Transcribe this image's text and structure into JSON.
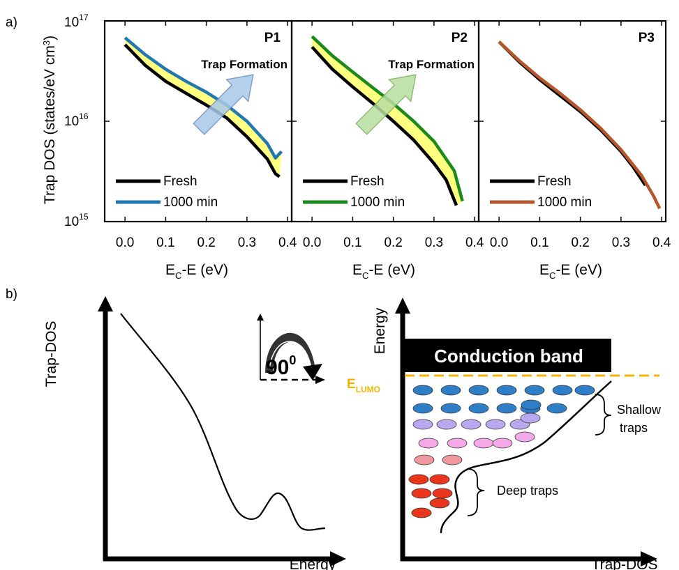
{
  "panel_labels": {
    "a": "a)",
    "b": "b)"
  },
  "colors": {
    "fresh": "#000000",
    "p1": "#1f77b4",
    "p2": "#1a8a1a",
    "p3": "#b5562a",
    "fill": "#ffff80",
    "arrow_blue": "#a9c8e8",
    "arrow_green": "#b7dfa0",
    "lumo": "#f5b400",
    "trap_blue": "#2e7fc8",
    "trap_lavender": "#b8a8f0",
    "trap_pink": "#f5a8e8",
    "trap_rose": "#f09aa0",
    "trap_red": "#e8351c"
  },
  "chart_data": [
    {
      "type": "line",
      "panel": "P1",
      "title": "P1",
      "xlabel_main": "E",
      "xlabel_sub": "C",
      "xlabel_rest": "-E (eV)",
      "ylabel": "Trap DOS (states/eV cm³)",
      "ylabel_main": "Trap DOS (states/eV cm",
      "ylabel_sup": "3",
      "ylabel_end": ")",
      "yscale": "log",
      "xlim": [
        -0.05,
        0.41
      ],
      "ylim": [
        1000000000000000.0,
        1e+17
      ],
      "xticks": [
        "0.0",
        "0.1",
        "0.2",
        "0.3",
        "0.4"
      ],
      "yticks": [
        {
          "base": "10",
          "exp": "15"
        },
        {
          "base": "10",
          "exp": "16"
        },
        {
          "base": "10",
          "exp": "17"
        }
      ],
      "annotation": "Trap Formation",
      "series": [
        {
          "name": "Fresh",
          "x": [
            0.0,
            0.05,
            0.1,
            0.15,
            0.2,
            0.25,
            0.3,
            0.35,
            0.37,
            0.38
          ],
          "y": [
            5.8e+16,
            3.6e+16,
            2.5e+16,
            1.9e+16,
            1.45e+16,
            1.08e+16,
            7000000000000000.0,
            4200000000000000.0,
            3000000000000000.0,
            2800000000000000.0
          ]
        },
        {
          "name": "1000 min",
          "x": [
            0.0,
            0.05,
            0.1,
            0.15,
            0.2,
            0.25,
            0.3,
            0.35,
            0.37,
            0.385
          ],
          "y": [
            6.8e+16,
            4.6e+16,
            3.3e+16,
            2.5e+16,
            1.95e+16,
            1.45e+16,
            1e+16,
            6000000000000000.0,
            4300000000000000.0,
            5000000000000000.0
          ]
        }
      ]
    },
    {
      "type": "line",
      "panel": "P2",
      "title": "P2",
      "xlabel_main": "E",
      "xlabel_sub": "C",
      "xlabel_rest": "-E (eV)",
      "yscale": "log",
      "xlim": [
        -0.05,
        0.41
      ],
      "ylim": [
        1000000000000000.0,
        1e+17
      ],
      "xticks": [
        "0.0",
        "0.1",
        "0.2",
        "0.3",
        "0.4"
      ],
      "annotation": "Trap Formation",
      "series": [
        {
          "name": "Fresh",
          "x": [
            0.0,
            0.05,
            0.1,
            0.15,
            0.2,
            0.25,
            0.3,
            0.33,
            0.355
          ],
          "y": [
            5.5e+16,
            3.3e+16,
            2.2e+16,
            1.5e+16,
            1e+16,
            6500000000000000.0,
            3800000000000000.0,
            2600000000000000.0,
            1450000000000000.0
          ]
        },
        {
          "name": "1000 min",
          "x": [
            0.0,
            0.05,
            0.1,
            0.15,
            0.2,
            0.25,
            0.3,
            0.35,
            0.37
          ],
          "y": [
            7e+16,
            4.5e+16,
            3.1e+16,
            2.15e+16,
            1.5e+16,
            1e+16,
            6300000000000000.0,
            3200000000000000.0,
            1600000000000000.0
          ]
        }
      ]
    },
    {
      "type": "line",
      "panel": "P3",
      "title": "P3",
      "xlabel_main": "E",
      "xlabel_sub": "C",
      "xlabel_rest": "-E (eV)",
      "yscale": "log",
      "xlim": [
        -0.05,
        0.41
      ],
      "ylim": [
        1000000000000000.0,
        1e+17
      ],
      "xticks": [
        "0.0",
        "0.1",
        "0.2",
        "0.3",
        "0.4"
      ],
      "series": [
        {
          "name": "Fresh",
          "x": [
            0.0,
            0.05,
            0.1,
            0.15,
            0.2,
            0.25,
            0.3,
            0.33,
            0.36
          ],
          "y": [
            6.2e+16,
            3.9e+16,
            2.6e+16,
            1.8e+16,
            1.25e+16,
            8200000000000000.0,
            5000000000000000.0,
            3500000000000000.0,
            2300000000000000.0
          ]
        },
        {
          "name": "1000 min",
          "x": [
            0.0,
            0.05,
            0.1,
            0.15,
            0.2,
            0.25,
            0.3,
            0.35,
            0.38,
            0.395
          ],
          "y": [
            6.2e+16,
            4e+16,
            2.7e+16,
            1.9e+16,
            1.3e+16,
            8500000000000000.0,
            5200000000000000.0,
            2900000000000000.0,
            1800000000000000.0,
            1350000000000000.0
          ]
        }
      ]
    }
  ],
  "diagram_left": {
    "ylabel": "Trap-DOS",
    "xlabel": "Energy",
    "rotation_main": "90",
    "rotation_sup": "0"
  },
  "diagram_right": {
    "ylabel": "Energy",
    "xlabel": "Trap-DOS",
    "band": "Conduction band",
    "lumo_main": "E",
    "lumo_sub": "LUMO",
    "shallow_line1": "Shallow",
    "shallow_line2": "traps",
    "deep": "Deep traps"
  }
}
